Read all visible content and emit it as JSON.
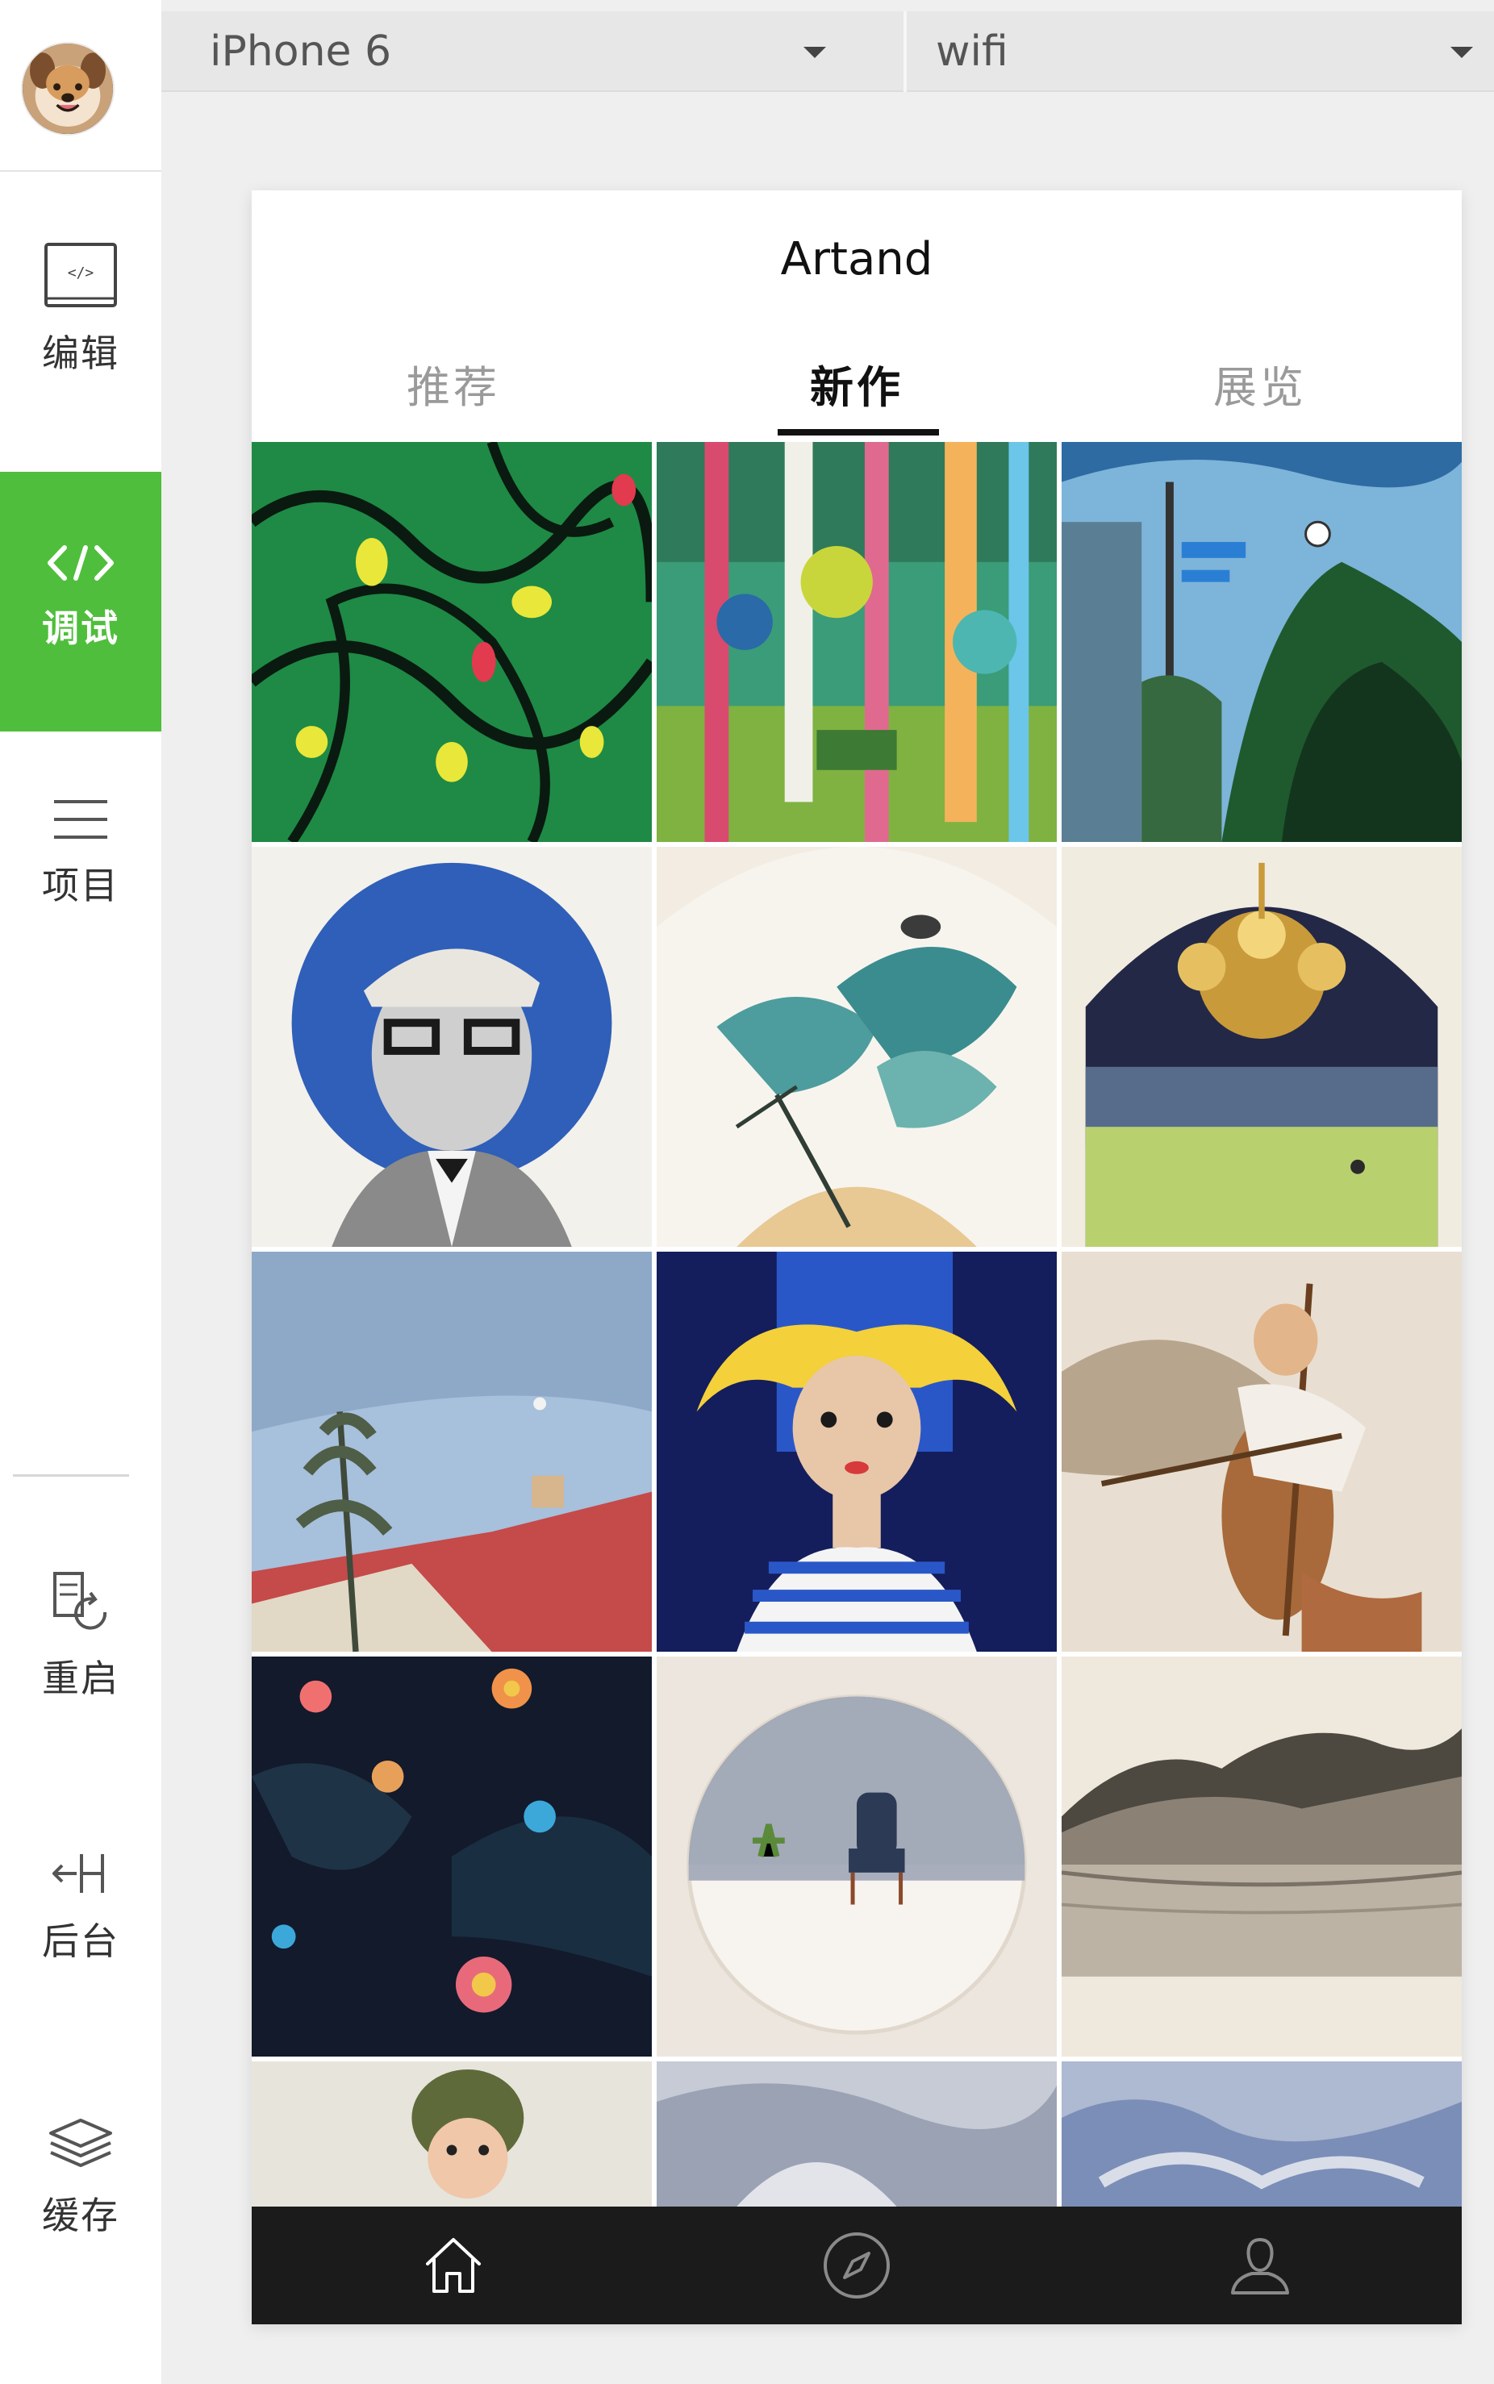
{
  "sidebar": {
    "avatar": {
      "name": "user-avatar",
      "description": "dog photo"
    },
    "items": [
      {
        "id": "edit",
        "label": "编辑",
        "icon": "code-window-icon",
        "active": false
      },
      {
        "id": "debug",
        "label": "调试",
        "icon": "code-brackets-icon",
        "active": true
      },
      {
        "id": "project",
        "label": "项目",
        "icon": "menu-lines-icon",
        "active": false
      },
      {
        "id": "restart",
        "label": "重启",
        "icon": "restart-icon",
        "active": false
      },
      {
        "id": "backend",
        "label": "后台",
        "icon": "backend-split-icon",
        "active": false
      },
      {
        "id": "cache",
        "label": "缓存",
        "icon": "layers-icon",
        "active": false
      }
    ],
    "active_color": "#4fbe3c"
  },
  "topbar": {
    "device": "iPhone 6",
    "network": "wifi"
  },
  "phone": {
    "title": "Artand",
    "tabs": [
      {
        "label": "推荐",
        "active": false
      },
      {
        "label": "新作",
        "active": true
      },
      {
        "label": "展览",
        "active": false
      }
    ],
    "grid": {
      "columns": 3,
      "artworks": [
        "green-abstract-painting",
        "colorful-forest-painting",
        "street-trees-painting",
        "watercolor-portrait-man",
        "ink-lotus-fan-painting",
        "chandelier-watercolor",
        "sky-tree-roof-painting",
        "blonde-girl-painting",
        "cellist-watercolor",
        "dark-flowers-painting",
        "chair-round-painting",
        "ink-landscape-painting",
        "boy-helmet-painting",
        "grey-abstract-painting",
        "blue-abstract-painting"
      ]
    },
    "tabbar": [
      {
        "icon": "home-icon"
      },
      {
        "icon": "compass-icon"
      },
      {
        "icon": "user-icon"
      }
    ]
  }
}
